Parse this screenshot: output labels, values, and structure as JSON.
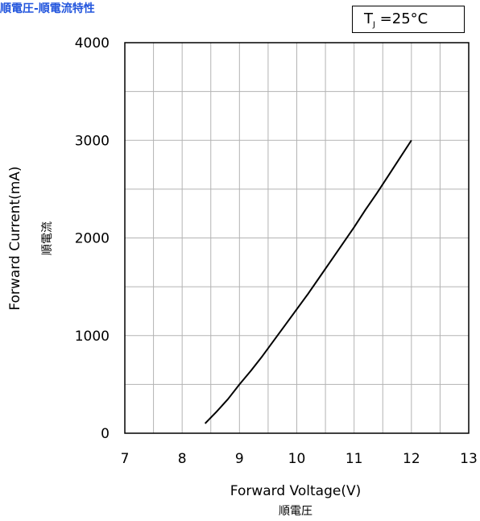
{
  "title": "順電圧-順電流特性",
  "condition": {
    "symbol": "T",
    "subscript": "J",
    "value": " =25°C"
  },
  "chart_data": {
    "type": "line",
    "xlabel": "Forward Voltage(V)",
    "xlabel_sub": "順電圧",
    "ylabel": "Forward Current(mA)",
    "ylabel_sub": "順電流",
    "xlim": [
      7,
      13
    ],
    "ylim": [
      0,
      4000
    ],
    "x_ticks": [
      7,
      8,
      9,
      10,
      11,
      12,
      13
    ],
    "y_ticks": [
      0,
      1000,
      2000,
      3000,
      4000
    ],
    "grid": true,
    "series": [
      {
        "x": [
          8.4,
          8.6,
          8.8,
          9.0,
          9.2,
          9.4,
          9.6,
          9.8,
          10.0,
          10.2,
          10.4,
          10.6,
          10.8,
          11.0,
          11.2,
          11.4,
          11.6,
          11.8,
          12.0
        ],
        "y": [
          100,
          220,
          350,
          500,
          640,
          790,
          950,
          1110,
          1270,
          1430,
          1600,
          1770,
          1940,
          2110,
          2290,
          2460,
          2640,
          2820,
          3000
        ]
      }
    ]
  }
}
